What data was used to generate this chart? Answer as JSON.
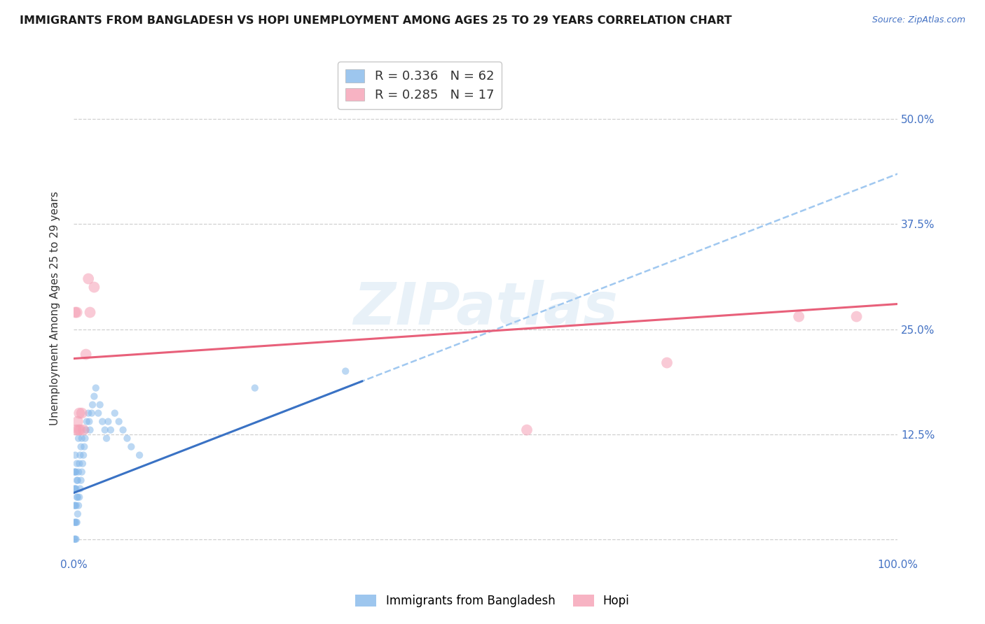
{
  "title": "IMMIGRANTS FROM BANGLADESH VS HOPI UNEMPLOYMENT AMONG AGES 25 TO 29 YEARS CORRELATION CHART",
  "source": "Source: ZipAtlas.com",
  "ylabel": "Unemployment Among Ages 25 to 29 years",
  "yticks": [
    0.0,
    0.125,
    0.25,
    0.375,
    0.5
  ],
  "ytick_labels": [
    "",
    "12.5%",
    "25.0%",
    "37.5%",
    "50.0%"
  ],
  "xlim": [
    0.0,
    1.0
  ],
  "ylim": [
    -0.02,
    0.57
  ],
  "watermark": "ZIPatlas",
  "bangladesh_scatter_x": [
    0.001,
    0.001,
    0.001,
    0.001,
    0.001,
    0.002,
    0.002,
    0.002,
    0.002,
    0.002,
    0.002,
    0.003,
    0.003,
    0.003,
    0.003,
    0.003,
    0.004,
    0.004,
    0.004,
    0.004,
    0.005,
    0.005,
    0.005,
    0.006,
    0.006,
    0.006,
    0.007,
    0.007,
    0.008,
    0.008,
    0.009,
    0.009,
    0.01,
    0.01,
    0.011,
    0.012,
    0.013,
    0.014,
    0.015,
    0.016,
    0.018,
    0.019,
    0.02,
    0.022,
    0.023,
    0.025,
    0.027,
    0.03,
    0.032,
    0.035,
    0.038,
    0.04,
    0.042,
    0.045,
    0.05,
    0.055,
    0.06,
    0.065,
    0.07,
    0.08,
    0.22,
    0.33
  ],
  "bangladesh_scatter_y": [
    0.0,
    0.02,
    0.04,
    0.06,
    0.08,
    0.0,
    0.02,
    0.04,
    0.06,
    0.08,
    0.1,
    0.0,
    0.02,
    0.04,
    0.06,
    0.08,
    0.02,
    0.05,
    0.07,
    0.09,
    0.03,
    0.05,
    0.07,
    0.04,
    0.08,
    0.12,
    0.05,
    0.09,
    0.06,
    0.1,
    0.07,
    0.11,
    0.08,
    0.12,
    0.09,
    0.1,
    0.11,
    0.12,
    0.13,
    0.14,
    0.15,
    0.14,
    0.13,
    0.15,
    0.16,
    0.17,
    0.18,
    0.15,
    0.16,
    0.14,
    0.13,
    0.12,
    0.14,
    0.13,
    0.15,
    0.14,
    0.13,
    0.12,
    0.11,
    0.1,
    0.18,
    0.2
  ],
  "hopi_scatter_x": [
    0.002,
    0.003,
    0.004,
    0.005,
    0.006,
    0.007,
    0.008,
    0.01,
    0.012,
    0.015,
    0.018,
    0.02,
    0.025,
    0.55,
    0.72,
    0.88,
    0.95
  ],
  "hopi_scatter_y": [
    0.27,
    0.13,
    0.27,
    0.14,
    0.13,
    0.15,
    0.13,
    0.15,
    0.13,
    0.22,
    0.31,
    0.27,
    0.3,
    0.13,
    0.21,
    0.265,
    0.265
  ],
  "bangladesh_line_intercept": 0.055,
  "bangladesh_line_slope": 0.38,
  "bangladesh_line_xmax": 0.35,
  "hopi_line_intercept": 0.215,
  "hopi_line_slope": 0.065,
  "hopi_line_xmax": 1.0,
  "dashed_line_intercept": 0.055,
  "dashed_line_slope": 0.38,
  "dashed_line_xmin": 0.22,
  "dashed_line_xmax": 1.0,
  "scatter_size_bangladesh": 55,
  "scatter_size_hopi": 130,
  "scatter_alpha": 0.55,
  "color_bangladesh": "#85b8ea",
  "color_hopi": "#f5a0b5",
  "line_color_bangladesh": "#3a72c4",
  "line_color_hopi": "#e8607a",
  "dashed_line_color": "#a0c8f0",
  "background_color": "#ffffff",
  "grid_color": "#d0d0d0",
  "title_fontsize": 11.5,
  "axis_label_fontsize": 11,
  "tick_fontsize": 11,
  "legend_fontsize": 13,
  "source_fontsize": 9,
  "legend_r1": "R = 0.336",
  "legend_n1": "N = 62",
  "legend_r2": "R = 0.285",
  "legend_n2": "N = 17",
  "legend_label1": "Immigrants from Bangladesh",
  "legend_label2": "Hopi"
}
